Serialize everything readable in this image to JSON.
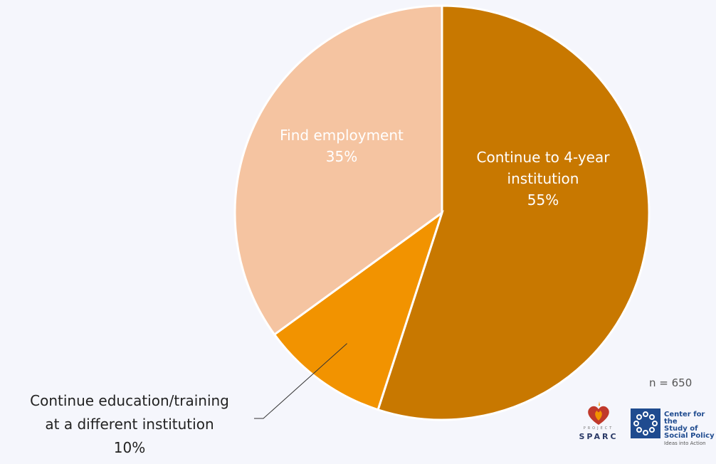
{
  "chart_data": {
    "type": "pie",
    "slices": [
      {
        "label_lines": [
          "Continue to 4-year",
          "institution"
        ],
        "value": 55,
        "value_label": "55%",
        "color": "#c87800"
      },
      {
        "label_lines": [
          "Continue education/training",
          "at a different institution"
        ],
        "value": 10,
        "value_label": "10%",
        "color": "#f29300"
      },
      {
        "label_lines": [
          "Find employment"
        ],
        "value": 35,
        "value_label": "35%",
        "color": "#f5c4a1"
      }
    ]
  },
  "note": "n = 650",
  "logos": {
    "sparc": {
      "project": "PROJECT",
      "name": "SPARC"
    },
    "cssp": {
      "line1": "Center for the",
      "line2": "Study of",
      "line3": "Social Policy",
      "tagline": "Ideas into Action"
    }
  }
}
